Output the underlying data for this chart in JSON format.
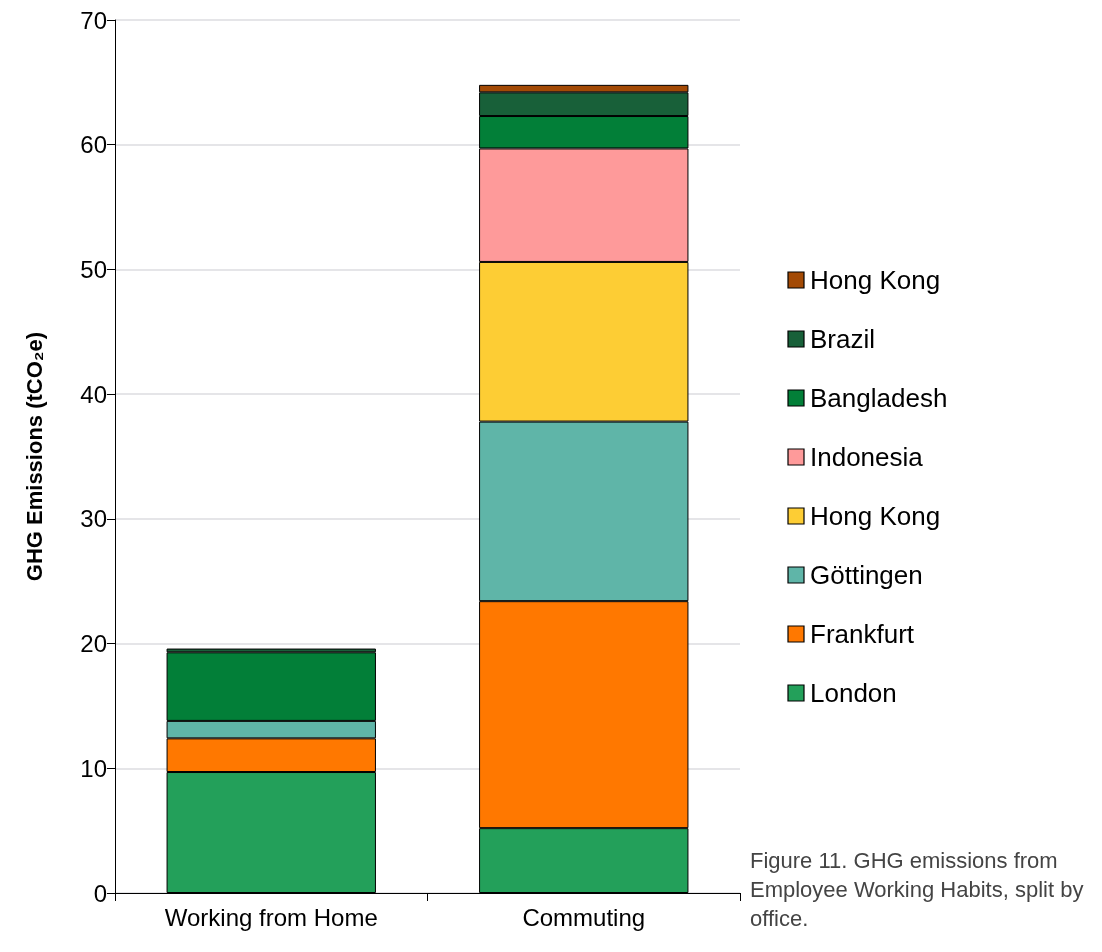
{
  "chart_data": {
    "type": "bar",
    "stacked": true,
    "ylabel": "GHG Emissions (tCO₂e)",
    "categories": [
      "Working from Home",
      "Commuting"
    ],
    "series": [
      {
        "name": "London",
        "color": "#23a05a",
        "values": [
          9.7,
          5.2
        ]
      },
      {
        "name": "Frankfurt",
        "color": "#ff7800",
        "values": [
          2.7,
          18.2
        ]
      },
      {
        "name": "Göttingen",
        "color": "#5fb5a8",
        "values": [
          1.4,
          14.4
        ]
      },
      {
        "name": "Hong Kong",
        "color": "#fdcd34",
        "values": [
          null,
          12.8
        ]
      },
      {
        "name": "Indonesia",
        "color": "#fe9a9a",
        "values": [
          null,
          9.1
        ]
      },
      {
        "name": "Bangladesh",
        "color": "#027f38",
        "values": [
          5.5,
          2.6
        ]
      },
      {
        "name": "Brazil",
        "color": "#186039",
        "values": [
          0.3,
          1.9
        ]
      },
      {
        "name": "Hong Kong",
        "color": "#a34a05",
        "values": [
          null,
          0.6
        ]
      }
    ],
    "ylim": [
      0,
      70
    ],
    "yticks": [
      0,
      10,
      20,
      30,
      40,
      50,
      60,
      70
    ],
    "grid": "y",
    "legend": "right",
    "annotations": [
      "Figure 11. GHG emissions from Employee Working Habits, split by office."
    ]
  }
}
